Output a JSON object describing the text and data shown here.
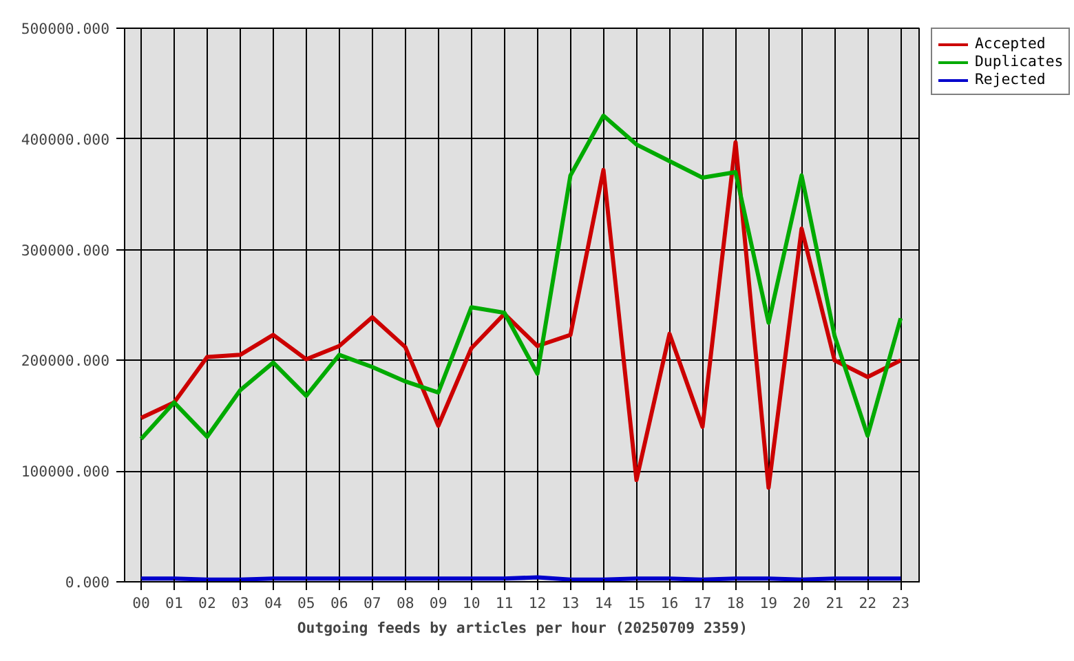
{
  "chart_data": {
    "type": "line",
    "xlabel": "Outgoing feeds by articles per hour (20250709 2359)",
    "categories": [
      "00",
      "01",
      "02",
      "03",
      "04",
      "05",
      "06",
      "07",
      "08",
      "09",
      "10",
      "11",
      "12",
      "13",
      "14",
      "15",
      "16",
      "17",
      "18",
      "19",
      "20",
      "21",
      "22",
      "23"
    ],
    "series": [
      {
        "name": "Accepted",
        "color": "#cc0000",
        "values": [
          148000,
          162000,
          203000,
          205000,
          223000,
          201000,
          213000,
          239000,
          212000,
          141000,
          211000,
          242000,
          213000,
          223000,
          372000,
          92000,
          224000,
          140000,
          397000,
          85000,
          319000,
          200000,
          185000,
          200000
        ]
      },
      {
        "name": "Duplicates",
        "color": "#00aa00",
        "values": [
          129000,
          162000,
          131000,
          173000,
          198000,
          168000,
          205000,
          194000,
          181000,
          171000,
          248000,
          243000,
          188000,
          367000,
          421000,
          395000,
          380000,
          365000,
          370000,
          234000,
          367000,
          222000,
          132000,
          238000
        ]
      },
      {
        "name": "Rejected",
        "color": "#0000cc",
        "values": [
          3000,
          3000,
          2000,
          2000,
          3000,
          3000,
          3000,
          3000,
          3000,
          3000,
          3000,
          3000,
          4000,
          2000,
          2000,
          3000,
          3000,
          2000,
          3000,
          3000,
          2000,
          3000,
          3000,
          3000
        ]
      }
    ],
    "ylim": [
      0,
      500000
    ],
    "yticks": [
      {
        "value": 0,
        "label": "0.000"
      },
      {
        "value": 100000,
        "label": "100000.000"
      },
      {
        "value": 200000,
        "label": "200000.000"
      },
      {
        "value": 300000,
        "label": "300000.000"
      },
      {
        "value": 400000,
        "label": "400000.000"
      },
      {
        "value": 500000,
        "label": "500000.000"
      }
    ],
    "grid": true,
    "legend": "top right",
    "line_style": "solid"
  }
}
